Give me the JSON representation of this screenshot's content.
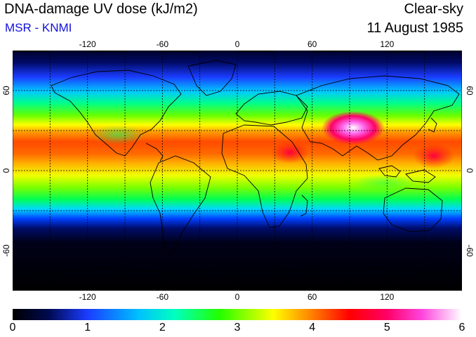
{
  "header": {
    "title": "DNA-damage UV dose (kJ/m2)",
    "subtitle": "MSR - KNMI",
    "condition": "Clear-sky",
    "date": "11 August 1985"
  },
  "map": {
    "projection": "equirectangular",
    "lon_range": [
      -180,
      180
    ],
    "lat_range": [
      -90,
      90
    ],
    "lon_ticks": [
      -120,
      -60,
      0,
      60,
      120
    ],
    "lat_ticks": [
      60,
      0,
      -60
    ],
    "grid": "dashed every 30 degrees",
    "colors": {
      "ocean_polar": "#000000",
      "uv_1": "#1a3cff",
      "uv_2": "#00ffff",
      "uv_3": "#00ff22",
      "uv_3_5": "#ffff00",
      "uv_4": "#ff6600",
      "uv_5": "#ff0066",
      "uv_6": "#ffffff"
    }
  },
  "colorbar": {
    "min": 0,
    "max": 6,
    "tick_labels": [
      "0",
      "1",
      "2",
      "3",
      "4",
      "5",
      "6"
    ]
  }
}
